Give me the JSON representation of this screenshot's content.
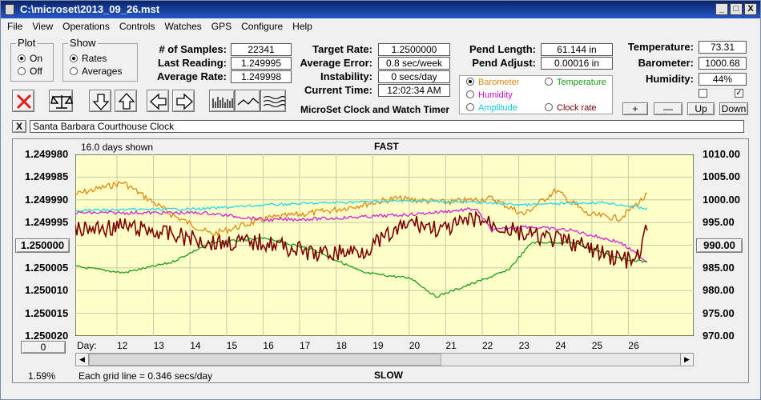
{
  "title": "C:\\microset\\2013_09_26.mst",
  "menu": [
    "File",
    "View",
    "Operations",
    "Controls",
    "Watches",
    "GPS",
    "Configure",
    "Help"
  ],
  "window_buttons": [
    "_",
    "□",
    "X"
  ],
  "plot_group": {
    "title": "Plot",
    "on": "On",
    "off": "Off"
  },
  "show_group": {
    "title": "Show",
    "rates": "Rates",
    "averages": "Averages"
  },
  "stats": {
    "samples_label": "# of Samples:",
    "samples": "22341",
    "last_label": "Last Reading:",
    "last": "1.249995",
    "avg_label": "Average Rate:",
    "avg": "1.249998",
    "target_label": "Target Rate:",
    "target": "1.2500000",
    "error_label": "Average Error:",
    "error": "0.8 sec/week",
    "instab_label": "Instability:",
    "instab": "0 secs/day",
    "time_label": "Current Time:",
    "time": "12:02:34 AM",
    "pendlen_label": "Pend Length:",
    "pendlen": "61.144 in",
    "pendadj_label": "Pend Adjust:",
    "pendadj": "0.00016 in",
    "temp_label": "Temperature:",
    "temp": "73.31",
    "baro_label": "Barometer:",
    "baro": "1000.68",
    "hum_label": "Humidity:",
    "hum": "44%"
  },
  "app_name": "MicroSet Clock and Watch Timer",
  "sensor_options": {
    "barometer": "Barometer",
    "temperature": "Temperature",
    "humidity": "Humidity",
    "amplitude": "Amplitude",
    "clock_rate": "Clock rate"
  },
  "adjust_buttons": {
    "plus": "+",
    "minus": "—",
    "up": "Up",
    "down": "Down"
  },
  "clock_name": "Santa Barbara Courthouse Clock",
  "close_label": "X",
  "plot": {
    "days_shown": "16.0 days shown",
    "fast": "FAST",
    "slow": "SLOW",
    "left_ticks": [
      "1.249980",
      "1.249985",
      "1.249990",
      "1.249995",
      "1.250000",
      "1.250005",
      "1.250010",
      "1.250015",
      "1.250020"
    ],
    "left_highlight": "1.250000",
    "right_ticks": [
      "1010.00",
      "1005.00",
      "1000.00",
      "995.00",
      "990.00",
      "985.00",
      "980.00",
      "975.00",
      "970.00"
    ],
    "right_highlight": "990.00",
    "day_label": "Day:",
    "days": [
      "12",
      "13",
      "14",
      "15",
      "16",
      "17",
      "18",
      "19",
      "20",
      "21",
      "22",
      "23",
      "24",
      "25",
      "26"
    ],
    "offset_value": "0",
    "percent": "1.59%",
    "grid_note": "Each grid line = 0.346 secs/day"
  },
  "colors": {
    "barometer": "#e08a10",
    "temperature": "#18a018",
    "humidity": "#d020d0",
    "amplitude": "#20d8e8",
    "clock_rate": "#7a0000",
    "plot_bg": "#ffffc8"
  }
}
